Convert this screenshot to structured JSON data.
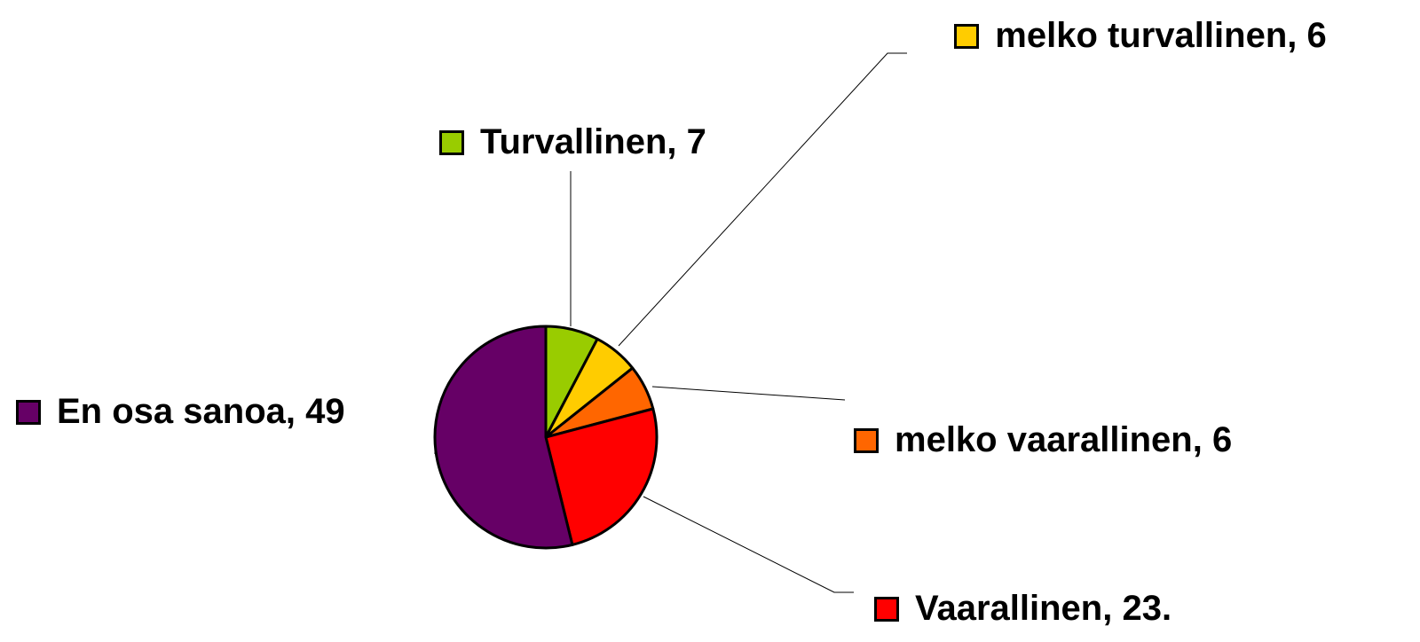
{
  "chart_data": {
    "type": "pie",
    "labels": [
      "Turvallinen, 7",
      "melko turvallinen, 6",
      "melko vaarallinen, 6",
      "Vaarallinen, 23.",
      "En osa sanoa, 49"
    ],
    "values": [
      7,
      6,
      6,
      23,
      49
    ],
    "colors": [
      "#99cc00",
      "#ffcc00",
      "#ff6600",
      "#ff0000",
      "#660066"
    ]
  }
}
